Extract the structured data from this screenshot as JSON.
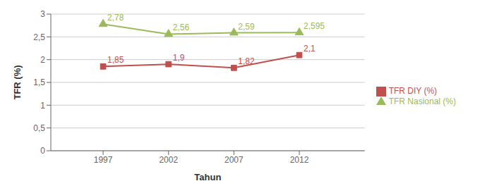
{
  "chart_data": {
    "type": "line",
    "x_label": "Tahun",
    "y_label": "TFR (%)",
    "x": [
      1997,
      2002,
      2007,
      2012
    ],
    "xlim": [
      1993,
      2017
    ],
    "xticks": [
      1997,
      2002,
      2007,
      2012
    ],
    "ylim": [
      0,
      3
    ],
    "yticks": [
      0,
      {
        "value": 0.5,
        "label": "0,5"
      },
      1,
      {
        "value": 1.5,
        "label": "1,5"
      },
      2,
      {
        "value": 2.5,
        "label": "2,5"
      },
      3
    ],
    "grid": "y",
    "legend": "right",
    "data_labels": true,
    "series": [
      {
        "name": "TFR DIY (%)",
        "color": "#C0504D",
        "marker": "square",
        "values": [
          1.85,
          1.9,
          1.82,
          2.1
        ],
        "value_labels": [
          "1,85",
          "1,9",
          "1,82",
          "2,1"
        ]
      },
      {
        "name": "TFR Nasional (%)",
        "color": "#9BBB59",
        "marker": "triangle",
        "values": [
          2.78,
          2.56,
          2.59,
          2.595
        ],
        "value_labels": [
          "2,78",
          "2,56",
          "2,59",
          "2,595"
        ]
      }
    ]
  }
}
